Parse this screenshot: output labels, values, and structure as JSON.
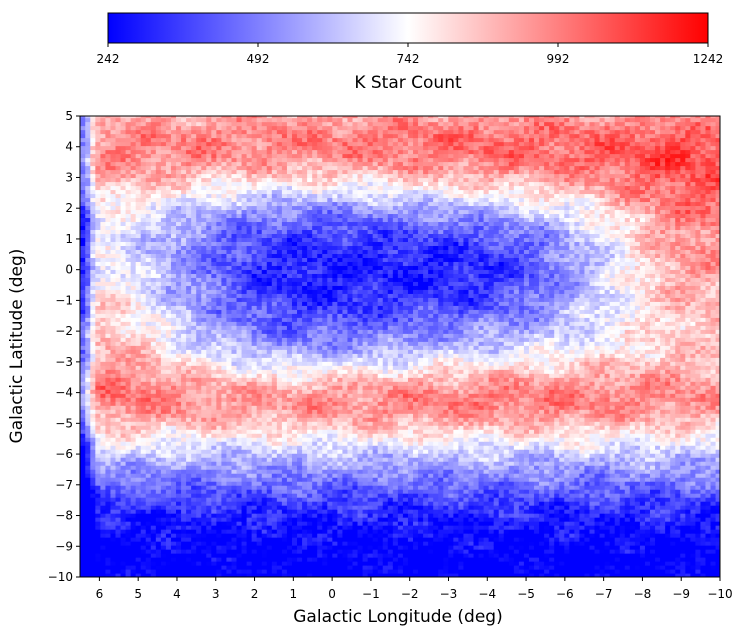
{
  "chart_data": {
    "type": "heatmap",
    "title": "",
    "xlabel": "Galactic Longitude (deg)",
    "ylabel": "Galactic Latitude (deg)",
    "xlim": [
      6.5,
      -10
    ],
    "ylim": [
      -10,
      5
    ],
    "x_ticks": [
      "6",
      "5",
      "4",
      "3",
      "2",
      "1",
      "0",
      "−1",
      "−2",
      "−3",
      "−4",
      "−5",
      "−6",
      "−7",
      "−8",
      "−9",
      "−10"
    ],
    "x_tick_values": [
      6,
      5,
      4,
      3,
      2,
      1,
      0,
      -1,
      -2,
      -3,
      -4,
      -5,
      -6,
      -7,
      -8,
      -9,
      -10
    ],
    "y_ticks": [
      "5",
      "4",
      "3",
      "2",
      "1",
      "0",
      "−1",
      "−2",
      "−3",
      "−4",
      "−5",
      "−6",
      "−7",
      "−8",
      "−9",
      "−10"
    ],
    "y_tick_values": [
      5,
      4,
      3,
      2,
      1,
      0,
      -1,
      -2,
      -3,
      -4,
      -5,
      -6,
      -7,
      -8,
      -9,
      -10
    ],
    "colorbar": {
      "label": "K Star Count",
      "min": 242,
      "max": 1242,
      "ticks": [
        "242",
        "492",
        "742",
        "992",
        "1242"
      ],
      "tick_values": [
        242,
        492,
        742,
        992,
        1242
      ],
      "colormap": "bwr",
      "colors": {
        "low": "#0000ff",
        "mid": "#ffffff",
        "high": "#ff0000"
      }
    },
    "grid": false,
    "description_of_pattern": {
      "high_count_regions": "upper band (lat 2 to 5) and middle band (lat -3 to -5), plus edges near lat 0 at |lon| large",
      "low_count_regions": "central region near lon -3 to 4, lat -3 to 3 and bottom band lat -7 to -10"
    }
  }
}
